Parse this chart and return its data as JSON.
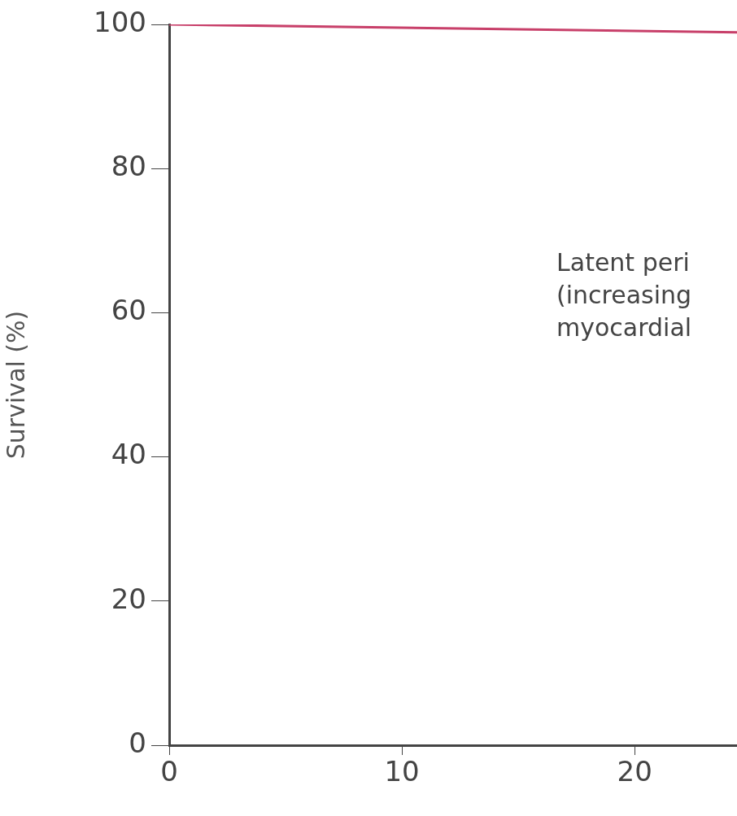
{
  "chart_data": {
    "type": "line",
    "ylabel": "Survival (%)",
    "x": [
      0,
      24.4
    ],
    "series": [
      {
        "color": "#c8406a",
        "values": [
          100,
          98.9
        ]
      }
    ],
    "xlim": [
      0,
      24.4
    ],
    "xticks": [
      0,
      10,
      20
    ],
    "ylim": [
      0,
      100
    ],
    "yticks": [
      0,
      20,
      40,
      60,
      80,
      100
    ],
    "grid": false,
    "legend": false,
    "marker": "none",
    "line_style": "solid",
    "annotations": [
      "Latent peri\n(increasing\nmyocardial"
    ]
  }
}
